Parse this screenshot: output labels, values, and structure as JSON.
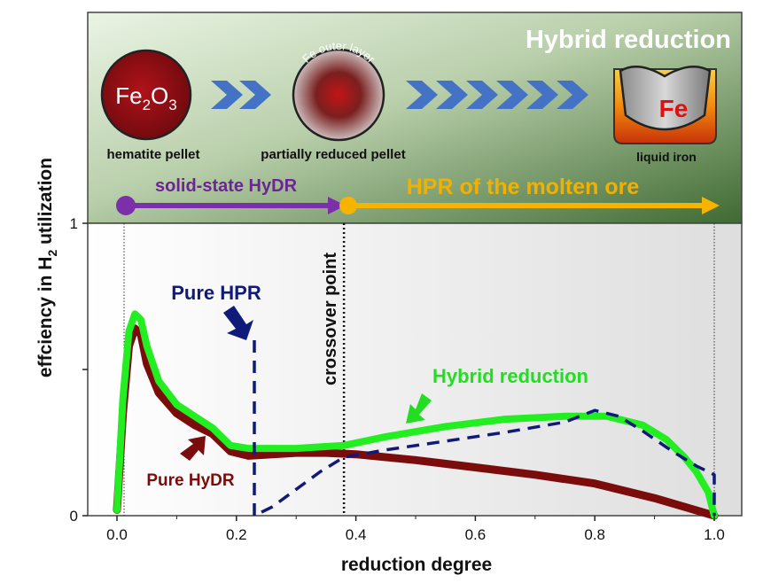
{
  "colors": {
    "hybrid": "#22ee22",
    "hydr": "#7a0c0c",
    "hpr": "#101a78",
    "solid_arrow": "#7b2fa8",
    "hpr_arrow": "#f6b400",
    "chevron": "#4472c4",
    "hybrid_annot": "#22dd22"
  },
  "banner": {
    "title": "Hybrid reduction",
    "pellets": [
      {
        "formula_main": "Fe",
        "formula_sub1": "2",
        "formula_mid": "O",
        "formula_sub2": "3",
        "caption": "hematite pellet"
      },
      {
        "ring_text": "Fe outer layer",
        "caption": "partially reduced pellet"
      },
      {
        "symbol": "Fe",
        "caption": "liquid iron"
      }
    ],
    "stage1": "solid-state HyDR",
    "stage2": "HPR of the molten ore"
  },
  "chart_data": {
    "type": "line",
    "xlabel": "reduction degree",
    "ylabel_main": "effciency in H",
    "ylabel_sub": "2",
    "ylabel_tail": " utilization",
    "xlim": [
      -0.03,
      1.05
    ],
    "ylim": [
      0,
      1
    ],
    "xticks": [
      "0.0",
      "0.2",
      "0.4",
      "0.6",
      "0.8",
      "1.0"
    ],
    "yticks_labeled": [
      "0",
      "1"
    ],
    "crossover_x": 0.38,
    "crossover_label": "crossover point",
    "series": [
      {
        "name": "Hybrid reduction",
        "style": "thick",
        "x": [
          0.0,
          0.01,
          0.02,
          0.03,
          0.04,
          0.05,
          0.07,
          0.1,
          0.13,
          0.16,
          0.19,
          0.22,
          0.26,
          0.3,
          0.34,
          0.38,
          0.45,
          0.55,
          0.65,
          0.75,
          0.82,
          0.88,
          0.92,
          0.95,
          0.97,
          0.99,
          1.0
        ],
        "y": [
          0.02,
          0.4,
          0.63,
          0.69,
          0.67,
          0.58,
          0.46,
          0.38,
          0.34,
          0.3,
          0.24,
          0.23,
          0.23,
          0.23,
          0.235,
          0.24,
          0.27,
          0.305,
          0.33,
          0.34,
          0.34,
          0.31,
          0.26,
          0.2,
          0.15,
          0.08,
          0.0
        ]
      },
      {
        "name": "Pure HyDR",
        "style": "thick",
        "x": [
          0.0,
          0.01,
          0.02,
          0.03,
          0.04,
          0.05,
          0.07,
          0.1,
          0.13,
          0.16,
          0.19,
          0.22,
          0.26,
          0.3,
          0.35,
          0.4,
          0.5,
          0.6,
          0.7,
          0.8,
          0.9,
          0.95,
          1.0
        ],
        "y": [
          0.02,
          0.35,
          0.58,
          0.64,
          0.62,
          0.52,
          0.42,
          0.35,
          0.31,
          0.28,
          0.22,
          0.205,
          0.21,
          0.215,
          0.215,
          0.21,
          0.19,
          0.165,
          0.14,
          0.11,
          0.06,
          0.03,
          0.0
        ]
      },
      {
        "name": "Pure HPR",
        "style": "dashed",
        "x": [
          0.23,
          0.23,
          0.26,
          0.3,
          0.34,
          0.38,
          0.45,
          0.55,
          0.65,
          0.75,
          0.8,
          0.84,
          0.88,
          0.93,
          0.97,
          1.0,
          1.0
        ],
        "y": [
          0.6,
          0.0,
          0.03,
          0.09,
          0.15,
          0.2,
          0.225,
          0.255,
          0.285,
          0.32,
          0.36,
          0.34,
          0.29,
          0.22,
          0.17,
          0.14,
          0.0
        ]
      }
    ],
    "annotations": [
      {
        "text": "Pure HPR",
        "target_series": "Pure HPR"
      },
      {
        "text": "Hybrid reduction",
        "target_series": "Hybrid reduction"
      },
      {
        "text": "Pure HyDR",
        "target_series": "Pure HyDR"
      }
    ]
  }
}
